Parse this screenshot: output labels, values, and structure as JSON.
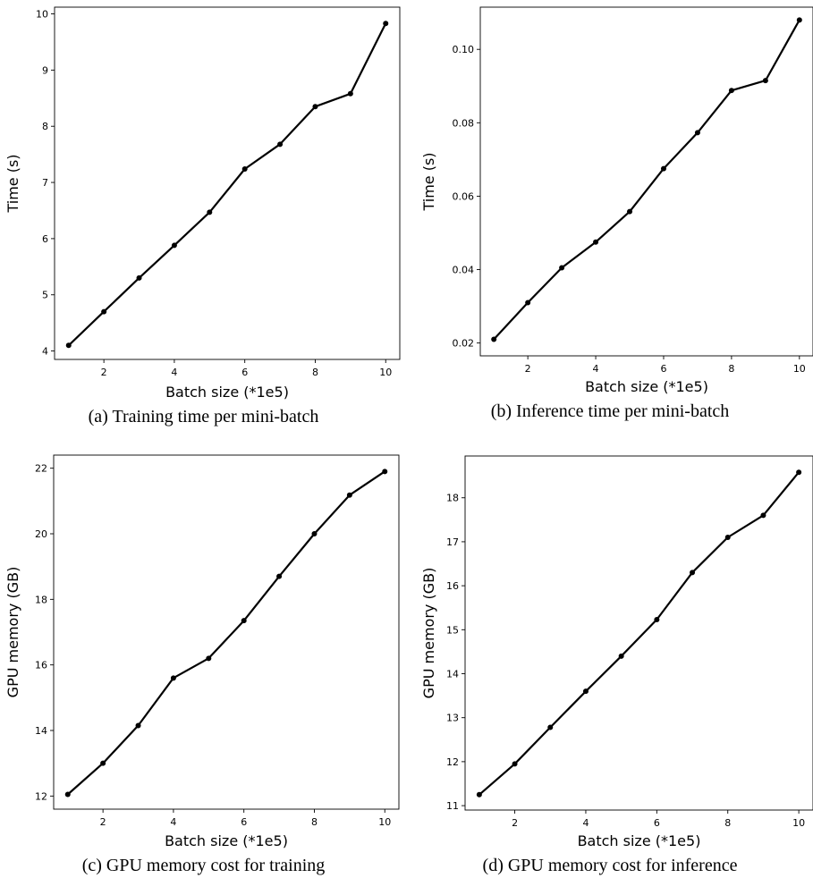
{
  "chart_data": [
    {
      "type": "line",
      "caption": "(a)  Training time per mini-batch",
      "xlabel": "Batch size (*1e5)",
      "ylabel": "Time (s)",
      "x": [
        1,
        2,
        3,
        4,
        5,
        6,
        7,
        8,
        9,
        10
      ],
      "series": [
        {
          "values": [
            4.1,
            4.7,
            5.3,
            5.88,
            6.47,
            7.24,
            7.68,
            8.35,
            8.58,
            9.83
          ]
        }
      ],
      "xlim": [
        0.6,
        10.4
      ],
      "ylim": [
        3.85,
        10.12
      ],
      "xticks": [
        2,
        4,
        6,
        8,
        10
      ],
      "yticks": [
        4,
        5,
        6,
        7,
        8,
        9,
        10
      ],
      "ytick_labels": [
        "4",
        "5",
        "6",
        "7",
        "8",
        "9",
        "10"
      ],
      "line_color": "#000000",
      "grid": false
    },
    {
      "type": "line",
      "caption": "(b)  Inference time per mini-batch",
      "xlabel": "Batch size (*1e5)",
      "ylabel": "Time (s)",
      "x": [
        1,
        2,
        3,
        4,
        5,
        6,
        7,
        8,
        9,
        10
      ],
      "series": [
        {
          "values": [
            0.021,
            0.031,
            0.0405,
            0.0475,
            0.0558,
            0.0675,
            0.0773,
            0.0888,
            0.0915,
            0.108
          ]
        }
      ],
      "xlim": [
        0.6,
        10.4
      ],
      "ylim": [
        0.0165,
        0.1115
      ],
      "xticks": [
        2,
        4,
        6,
        8,
        10
      ],
      "yticks": [
        0.02,
        0.04,
        0.06,
        0.08,
        0.1
      ],
      "ytick_labels": [
        "0.02",
        "0.04",
        "0.06",
        "0.08",
        "0.10"
      ],
      "line_color": "#000000",
      "grid": false
    },
    {
      "type": "line",
      "caption": "(c)  GPU memory cost for training",
      "xlabel": "Batch size (*1e5)",
      "ylabel": "GPU memory (GB)",
      "x": [
        1,
        2,
        3,
        4,
        5,
        6,
        7,
        8,
        9,
        10
      ],
      "series": [
        {
          "values": [
            12.05,
            13.0,
            14.15,
            15.6,
            16.2,
            17.35,
            18.7,
            20.0,
            21.18,
            21.9
          ]
        }
      ],
      "xlim": [
        0.6,
        10.4
      ],
      "ylim": [
        11.6,
        22.4
      ],
      "xticks": [
        2,
        4,
        6,
        8,
        10
      ],
      "yticks": [
        12,
        14,
        16,
        18,
        20,
        22
      ],
      "ytick_labels": [
        "12",
        "14",
        "16",
        "18",
        "20",
        "22"
      ],
      "line_color": "#000000",
      "grid": false
    },
    {
      "type": "line",
      "caption": "(d)  GPU memory cost for inference",
      "xlabel": "Batch size (*1e5)",
      "ylabel": "GPU memory (GB)",
      "x": [
        1,
        2,
        3,
        4,
        5,
        6,
        7,
        8,
        9,
        10
      ],
      "series": [
        {
          "values": [
            11.25,
            11.95,
            12.78,
            13.6,
            14.4,
            15.23,
            16.3,
            17.1,
            17.6,
            18.58
          ]
        }
      ],
      "xlim": [
        0.6,
        10.4
      ],
      "ylim": [
        10.9,
        18.95
      ],
      "xticks": [
        2,
        4,
        6,
        8,
        10
      ],
      "yticks": [
        11,
        12,
        13,
        14,
        15,
        16,
        17,
        18
      ],
      "ytick_labels": [
        "11",
        "12",
        "13",
        "14",
        "15",
        "16",
        "17",
        "18"
      ],
      "line_color": "#000000",
      "grid": false
    }
  ]
}
